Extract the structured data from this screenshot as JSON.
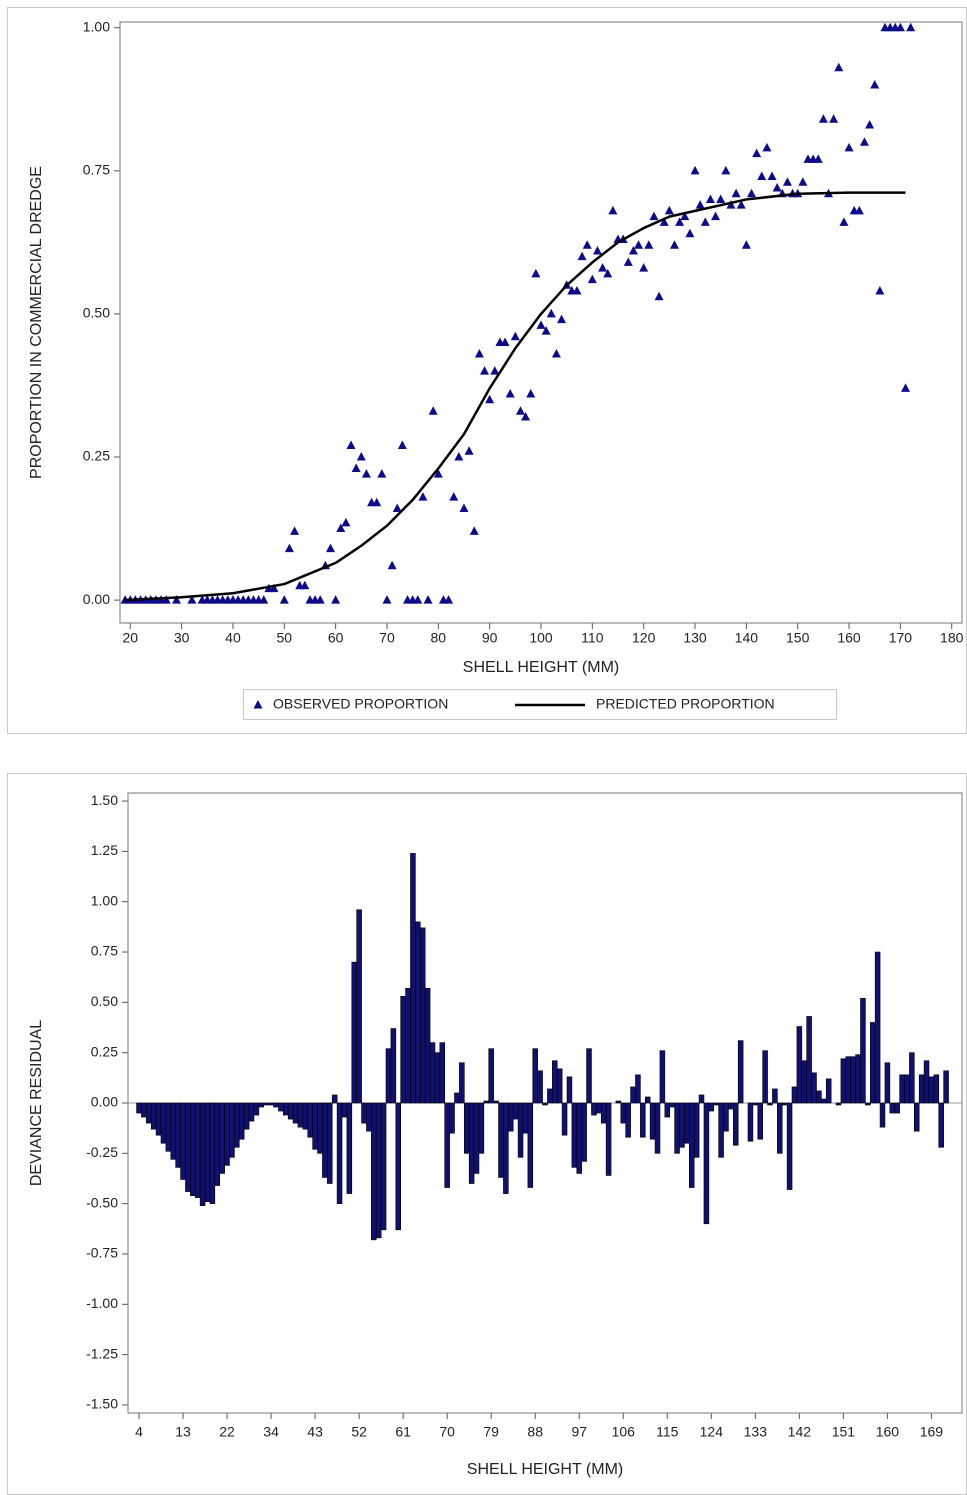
{
  "chart_data": [
    {
      "type": "scatter",
      "x_label": "SHELL HEIGHT (MM)",
      "y_label": "PROPORTION IN COMMERCIAL DREDGE",
      "xlim": [
        18,
        182
      ],
      "xticks": [
        20,
        30,
        40,
        50,
        60,
        70,
        80,
        90,
        100,
        110,
        120,
        130,
        140,
        150,
        160,
        170,
        180
      ],
      "ylim": [
        -0.04,
        1.01
      ],
      "yticks": [
        {
          "value": 0,
          "label": "0.00"
        },
        {
          "value": 0.25,
          "label": "0.25"
        },
        {
          "value": 0.5,
          "label": "0.50"
        },
        {
          "value": 0.75,
          "label": "0.75"
        },
        {
          "value": 1,
          "label": "1.00"
        }
      ],
      "legend": "bottom",
      "series": [
        {
          "name": "OBSERVED PROPORTION",
          "type": "scatter",
          "color": "#0c0c8a",
          "x": [
            19,
            20,
            21,
            22,
            23,
            24,
            25,
            26,
            27,
            29,
            32,
            34,
            35,
            36,
            37,
            38,
            39,
            40,
            41,
            42,
            43,
            44,
            45,
            46,
            47,
            48,
            50,
            51,
            52,
            53,
            54,
            55,
            56,
            57,
            58,
            59,
            60,
            61,
            62,
            63,
            64,
            65,
            66,
            67,
            68,
            69,
            70,
            71,
            72,
            73,
            74,
            75,
            76,
            77,
            78,
            79,
            80,
            81,
            82,
            83,
            84,
            85,
            86,
            87,
            88,
            89,
            90,
            91,
            92,
            93,
            94,
            95,
            96,
            97,
            98,
            99,
            100,
            101,
            102,
            103,
            104,
            105,
            106,
            107,
            108,
            109,
            110,
            111,
            112,
            113,
            114,
            115,
            116,
            117,
            118,
            119,
            120,
            121,
            122,
            123,
            124,
            125,
            126,
            127,
            128,
            129,
            130,
            131,
            132,
            133,
            134,
            135,
            136,
            137,
            138,
            139,
            140,
            141,
            142,
            143,
            144,
            145,
            146,
            147,
            148,
            149,
            150,
            151,
            152,
            153,
            154,
            155,
            156,
            157,
            158,
            159,
            160,
            161,
            162,
            163,
            164,
            165,
            166,
            167,
            168,
            169,
            170,
            171,
            172
          ],
          "values": [
            0,
            0,
            0,
            0,
            0,
            0,
            0,
            0,
            0,
            0,
            0,
            0,
            0,
            0,
            0,
            0,
            0,
            0,
            0,
            0,
            0,
            0,
            0,
            0,
            0.02,
            0.02,
            0,
            0.09,
            0.12,
            0.025,
            0.025,
            0,
            0,
            0,
            0.06,
            0.09,
            0,
            0.125,
            0.135,
            0.27,
            0.23,
            0.25,
            0.22,
            0.17,
            0.17,
            0.22,
            0,
            0.06,
            0.16,
            0.27,
            0,
            0,
            0,
            0.18,
            0,
            0.33,
            0.22,
            0,
            0,
            0.18,
            0.25,
            0.16,
            0.26,
            0.12,
            0.43,
            0.4,
            0.35,
            0.4,
            0.45,
            0.45,
            0.36,
            0.46,
            0.33,
            0.32,
            0.36,
            0.57,
            0.48,
            0.47,
            0.5,
            0.43,
            0.49,
            0.55,
            0.54,
            0.54,
            0.6,
            0.62,
            0.56,
            0.61,
            0.58,
            0.57,
            0.68,
            0.63,
            0.63,
            0.59,
            0.61,
            0.62,
            0.58,
            0.62,
            0.67,
            0.53,
            0.66,
            0.68,
            0.62,
            0.66,
            0.67,
            0.64,
            0.75,
            0.69,
            0.66,
            0.7,
            0.67,
            0.7,
            0.75,
            0.69,
            0.71,
            0.69,
            0.62,
            0.71,
            0.78,
            0.74,
            0.79,
            0.74,
            0.72,
            0.71,
            0.73,
            0.71,
            0.71,
            0.73,
            0.77,
            0.77,
            0.77,
            0.84,
            0.71,
            0.84,
            0.93,
            0.66,
            0.79,
            0.68,
            0.68,
            0.8,
            0.83,
            0.9,
            0.54,
            1,
            1,
            1,
            1,
            0.37,
            1
          ]
        },
        {
          "name": "PREDICTED PROPORTION",
          "type": "line",
          "color": "#000000",
          "x": [
            19,
            30,
            40,
            50,
            60,
            65,
            70,
            75,
            80,
            85,
            90,
            95,
            100,
            105,
            110,
            115,
            120,
            125,
            130,
            140,
            150,
            160,
            171
          ],
          "values": [
            0,
            0.005,
            0.012,
            0.028,
            0.065,
            0.095,
            0.13,
            0.175,
            0.23,
            0.29,
            0.37,
            0.44,
            0.5,
            0.55,
            0.59,
            0.625,
            0.65,
            0.67,
            0.68,
            0.7,
            0.71,
            0.712,
            0.712
          ]
        }
      ]
    },
    {
      "type": "bar",
      "x_label": "SHELL HEIGHT (MM)",
      "y_label": "DEVIANCE RESIDUAL",
      "color": "#10106e",
      "ylim": [
        -1.54,
        1.54
      ],
      "yticks": [
        {
          "value": -1.5,
          "label": "-1.50"
        },
        {
          "value": -1.25,
          "label": "-1.25"
        },
        {
          "value": -1,
          "label": "-1.00"
        },
        {
          "value": -0.75,
          "label": "-0.75"
        },
        {
          "value": -0.5,
          "label": "-0.50"
        },
        {
          "value": -0.25,
          "label": "-0.25"
        },
        {
          "value": 0,
          "label": "0.00"
        },
        {
          "value": 0.25,
          "label": "0.25"
        },
        {
          "value": 0.5,
          "label": "0.50"
        },
        {
          "value": 0.75,
          "label": "0.75"
        },
        {
          "value": 1,
          "label": "1.00"
        },
        {
          "value": 1.25,
          "label": "1.25"
        },
        {
          "value": 1.5,
          "label": "1.50"
        }
      ],
      "categories": [
        4,
        null,
        null,
        null,
        null,
        null,
        null,
        null,
        null,
        13,
        null,
        null,
        null,
        null,
        null,
        null,
        null,
        null,
        22,
        null,
        null,
        null,
        null,
        null,
        null,
        null,
        null,
        34,
        null,
        null,
        null,
        null,
        null,
        null,
        null,
        null,
        43,
        null,
        null,
        null,
        null,
        null,
        null,
        null,
        null,
        52,
        null,
        null,
        null,
        null,
        null,
        null,
        null,
        null,
        61,
        null,
        null,
        null,
        null,
        null,
        null,
        null,
        null,
        70,
        null,
        null,
        null,
        null,
        null,
        null,
        null,
        null,
        79,
        null,
        null,
        null,
        null,
        null,
        null,
        null,
        null,
        88,
        null,
        null,
        null,
        null,
        null,
        null,
        null,
        null,
        97,
        null,
        null,
        null,
        null,
        null,
        null,
        null,
        null,
        106,
        null,
        null,
        null,
        null,
        null,
        null,
        null,
        null,
        115,
        null,
        null,
        null,
        null,
        null,
        null,
        null,
        null,
        124,
        null,
        null,
        null,
        null,
        null,
        null,
        null,
        null,
        133,
        null,
        null,
        null,
        null,
        null,
        null,
        null,
        null,
        142,
        null,
        null,
        null,
        null,
        null,
        null,
        null,
        null,
        151,
        null,
        null,
        null,
        null,
        null,
        null,
        null,
        null,
        160,
        null,
        null,
        null,
        null,
        null,
        null,
        null,
        null,
        169,
        null,
        null,
        null
      ],
      "values": [
        -0.05,
        -0.07,
        -0.1,
        -0.13,
        -0.16,
        -0.2,
        -0.24,
        -0.28,
        -0.32,
        -0.38,
        -0.44,
        -0.46,
        -0.47,
        -0.51,
        -0.49,
        -0.5,
        -0.41,
        -0.35,
        -0.31,
        -0.27,
        -0.22,
        -0.18,
        -0.13,
        -0.09,
        -0.06,
        -0.02,
        -0.01,
        -0.01,
        -0.02,
        -0.04,
        -0.06,
        -0.08,
        -0.1,
        -0.12,
        -0.13,
        -0.17,
        -0.23,
        -0.25,
        -0.37,
        -0.4,
        0.04,
        -0.5,
        -0.07,
        -0.45,
        0.7,
        0.96,
        -0.1,
        -0.14,
        -0.68,
        -0.67,
        -0.63,
        0.27,
        0.37,
        -0.63,
        0.53,
        0.57,
        1.24,
        0.9,
        0.87,
        0.57,
        0.3,
        0.25,
        0.3,
        -0.42,
        -0.15,
        0.05,
        0.2,
        -0.25,
        -0.4,
        -0.35,
        -0.25,
        0.01,
        0.27,
        0.01,
        -0.37,
        -0.45,
        -0.14,
        -0.08,
        -0.27,
        -0.15,
        -0.42,
        0.27,
        0.16,
        -0.01,
        0.07,
        0.21,
        0.17,
        -0.16,
        0.13,
        -0.32,
        -0.35,
        -0.29,
        0.27,
        -0.06,
        -0.05,
        -0.1,
        -0.36,
        0.0,
        0.01,
        -0.1,
        -0.17,
        0.08,
        0.14,
        -0.17,
        0.03,
        -0.18,
        -0.25,
        0.26,
        -0.07,
        -0.02,
        -0.25,
        -0.22,
        -0.2,
        -0.42,
        -0.27,
        0.04,
        -0.6,
        -0.04,
        -0.01,
        -0.27,
        -0.14,
        -0.03,
        -0.21,
        0.31,
        0.0,
        -0.19,
        -0.01,
        -0.18,
        0.26,
        -0.01,
        0.07,
        -0.25,
        -0.01,
        -0.43,
        0.08,
        0.38,
        0.21,
        0.43,
        0.15,
        0.06,
        0.02,
        0.12,
        0.0,
        -0.01,
        0.22,
        0.23,
        0.23,
        0.24,
        0.52,
        -0.01,
        0.4,
        0.75,
        -0.12,
        0.2,
        -0.05,
        -0.05,
        0.14,
        0.14,
        0.25,
        -0.14,
        0.14,
        0.21,
        0.13,
        0.14,
        -0.22,
        0.16
      ]
    }
  ]
}
